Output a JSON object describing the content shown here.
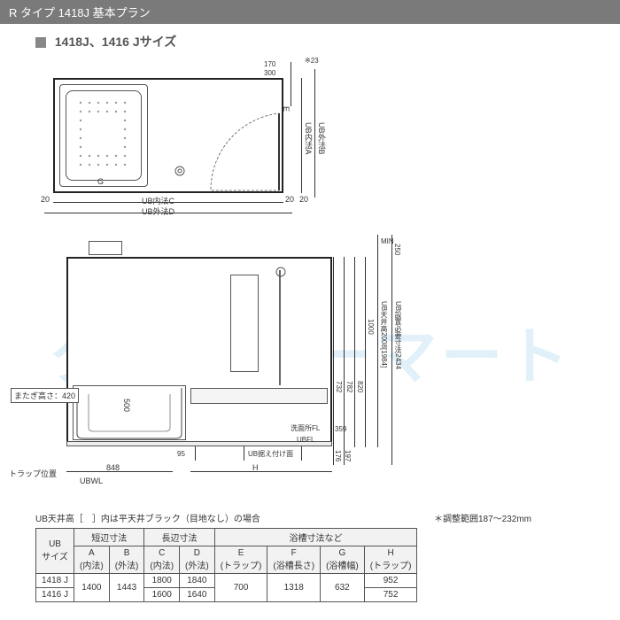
{
  "header": {
    "title": "R タイプ 1418J 基本プラン"
  },
  "subtitle": "1418J、1416 Jサイズ",
  "watermark": "クローバーマート",
  "plan": {
    "label_g": "G",
    "dim_20_left": "20",
    "dim_20_right": "20",
    "dim_20_bottom": "20",
    "dim_c": "UB内法C",
    "dim_d": "UB外法D",
    "dim_a": "UB内法A",
    "dim_b": "UB外法B",
    "dim_e": "E",
    "dim_170": "170",
    "dim_300": "300",
    "note_23": "※23"
  },
  "elev": {
    "matagi_label": "またぎ高さ：420",
    "dim_500": "500",
    "dim_848": "848",
    "dim_95": "95",
    "dim_h": "H",
    "trap_label": "トラップ位置",
    "ubwl": "UBWL",
    "ubfl": "UBFL",
    "suetsuke": "UB据え付け面",
    "senmen_fl": "洗面所FL",
    "dim_176": "176",
    "dim_197": "197",
    "dim_359": "359",
    "dim_732": "732",
    "dim_782": "782",
    "dim_820": "820",
    "dim_1000": "1000",
    "tenjou_label": "UB天井高2008[1984]",
    "setti_label": "UB設置必要寸法2434",
    "min_label": "MIN",
    "dim_250": "250"
  },
  "notes": {
    "ceiling_note": "UB天井高［　］内は平天井ブラック（目地なし）の場合",
    "adjust_note": "＊調整範囲187～232mm"
  },
  "table": {
    "hdr_size": "UB\nサイズ",
    "hdr_short": "短辺寸法",
    "hdr_long": "長辺寸法",
    "hdr_tub": "浴槽寸法など",
    "col_a": "A\n(内法)",
    "col_b": "B\n(外法)",
    "col_c": "C\n(内法)",
    "col_d": "D\n(外法)",
    "col_e": "E\n(トラップ)",
    "col_f": "F\n(浴槽長さ)",
    "col_g": "G\n(浴槽幅)",
    "col_h": "H\n(トラップ)",
    "rows": [
      {
        "size": "1418 J",
        "a": "1400",
        "b": "1443",
        "c": "1800",
        "d": "1840",
        "e": "700",
        "f": "1318",
        "g": "632",
        "h": "952"
      },
      {
        "size": "1416 J",
        "a": "1400",
        "b": "1443",
        "c": "1600",
        "d": "1640",
        "e": "700",
        "f": "1318",
        "g": "632",
        "h": "752"
      }
    ]
  },
  "style": {
    "header_bg": "#7a7a7a",
    "line_color": "#333333",
    "watermark_color": "rgba(140,200,230,0.25)"
  }
}
